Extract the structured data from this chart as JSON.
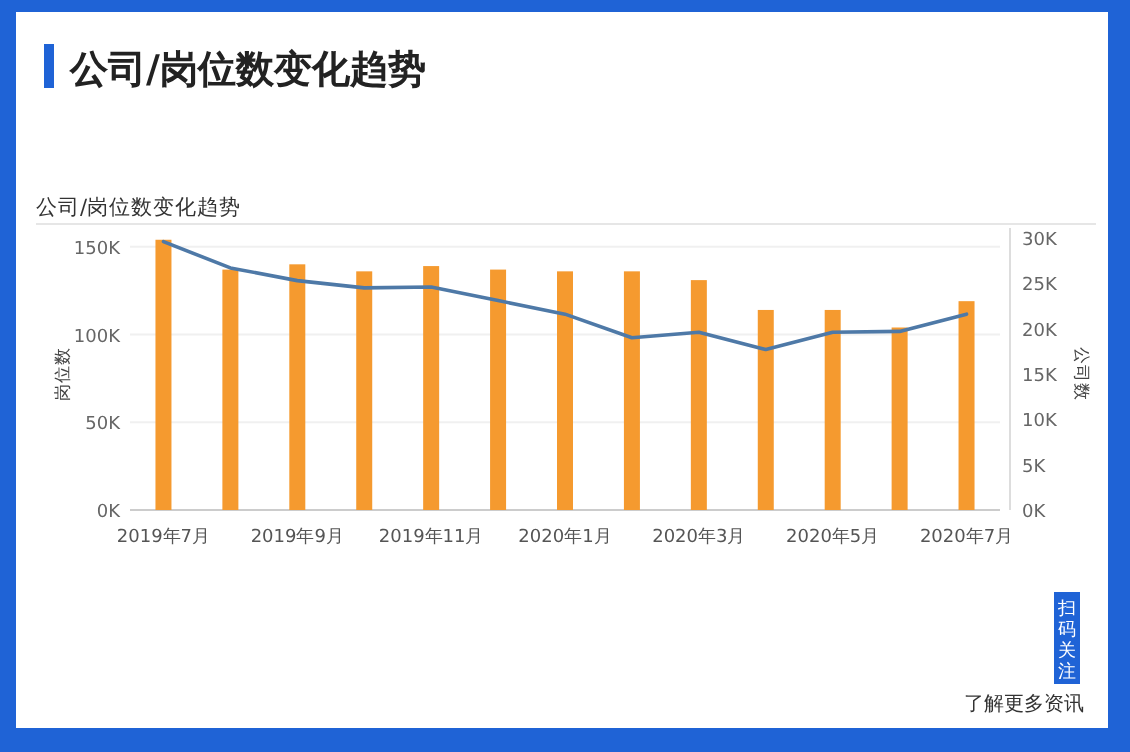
{
  "chart_data": {
    "type": "bar",
    "title": "公司/岗位数变化趋势",
    "subtitle": "公司/岗位数变化趋势",
    "ylabel": "岗位数",
    "y2label": "公司数",
    "categories": [
      "2019年7月",
      null,
      "2019年9月",
      null,
      "2019年11月",
      null,
      "2020年1月",
      null,
      "2020年3月",
      null,
      "2020年5月",
      null,
      "2020年7月"
    ],
    "series": [
      {
        "color": "#f59a2f",
        "values": [
          154000,
          137000,
          140000,
          136000,
          139000,
          137000,
          136000,
          136000,
          131000,
          114000,
          114000,
          104000,
          119000
        ]
      },
      {
        "type": "line",
        "axis": "y2",
        "color": "#4e79a7",
        "values": [
          29600,
          26700,
          25300,
          24500,
          24600,
          23100,
          21600,
          19000,
          19600,
          17700,
          19600,
          19700,
          21600
        ]
      }
    ],
    "ylim": [
      0,
      155000
    ],
    "yticks": [
      {
        "value": 0,
        "label": "0K"
      },
      {
        "value": 50000,
        "label": "50K"
      },
      {
        "value": 100000,
        "label": "100K"
      },
      {
        "value": 150000,
        "label": "150K"
      }
    ],
    "y2lim": [
      0,
      30000
    ],
    "y2ticks": [
      {
        "value": 0,
        "label": "0K"
      },
      {
        "value": 5000,
        "label": "5K"
      },
      {
        "value": 10000,
        "label": "10K"
      },
      {
        "value": 15000,
        "label": "15K"
      },
      {
        "value": 20000,
        "label": "20K"
      },
      {
        "value": 25000,
        "label": "25K"
      },
      {
        "value": 30000,
        "label": "30K"
      }
    ],
    "grid": "y",
    "annotations": [
      "扫码关注",
      "了解更多资讯"
    ]
  }
}
